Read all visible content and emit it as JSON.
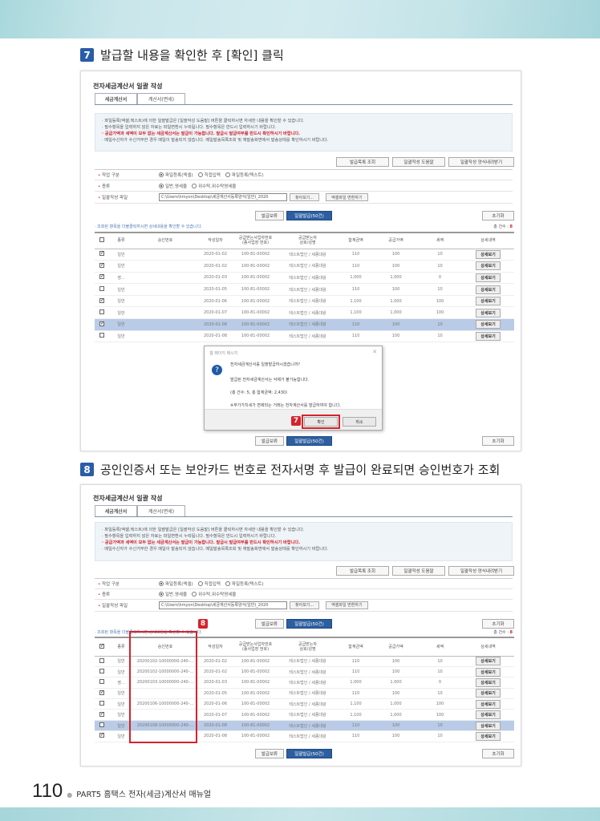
{
  "steps": [
    {
      "number": "7",
      "text": "발급할 내용을 확인한 후 [확인] 클릭"
    },
    {
      "number": "8",
      "text": "공인인증서 또는 보안카드 번호로 전자서명 후 발급이 완료되면 승인번호가 조회"
    }
  ],
  "common": {
    "title": "전자세금계산서 일괄 작성",
    "tabs": [
      "세금계산서",
      "계산서(면세)"
    ],
    "info": [
      "· 파일등록(엑셀,텍스트)에 의한 일괄발급은 [일괄작성 도움말] 버튼을 클릭하시면 자세한 내용을 확인할 수 있습니다.",
      "· 필수항목을 입력하지 않은 자료는 파일변환시 누락됩니다. 필수항목은 반드시 입력하시기 바랍니다.",
      "· 공급가액과 세액이 모두 없는 세금계산서는 발급이 가능합니다. 발급시 발급여부를 반드시 확인하시기 바랍니다.",
      "· 메일수신자가 수신거부한 경우 메일이 발송되지 않습니다. 메일발송목록조회 및 재발송화면에서 발송상태를 확인하시기 바랍니다."
    ],
    "top_buttons": [
      "발급목록 조회",
      "일괄작성 도움말",
      "일괄작성 양식내려받기"
    ],
    "form": {
      "work_type_label": "작업 구분",
      "work_types": [
        "파일등록(엑셀)",
        "직접입력",
        "파일등록(텍스트)"
      ],
      "kind_label": "종류",
      "kinds": [
        "일반,영세율",
        "위수탁,위수탁영세율"
      ],
      "file_label": "일괄작성 파일",
      "file_value": "C:\\Users\\hmyon\\Desktop\\세금계산서등록양식(일반)_2020",
      "browse": "찾아보기...",
      "convert": "엑셀파일 변환하기"
    },
    "hold": "발급보류",
    "issue": "일괄발급(50건)",
    "reset": "초기화",
    "note": "· 조회된 항목을 더블클릭하시면 상세내용을 확인할 수 있습니다.",
    "total_label": "총 건수 : ",
    "total_count": "8",
    "headers": [
      "종류",
      "승인번호",
      "작성일자",
      "공급받는사업자번호\n(종사업장 번호)",
      "공급받는자\n상호/성명",
      "합계금액",
      "공급가액",
      "세액",
      "상세내역"
    ],
    "detail": "상세보기"
  },
  "screens": [
    {
      "header_checked": false,
      "rows": [
        {
          "checked": true,
          "type": "일반",
          "approval": "",
          "date": "2020-01-02",
          "reg": "100-81-00002",
          "name": "테스트법인 / 세종대왕",
          "total": "110",
          "supply": "100",
          "tax": "10"
        },
        {
          "checked": true,
          "type": "일반",
          "approval": "",
          "date": "2020-01-02",
          "reg": "100-81-00002",
          "name": "테스트법인 / 세종대왕",
          "total": "110",
          "supply": "100",
          "tax": "10"
        },
        {
          "checked": true,
          "type": "영...",
          "approval": "",
          "date": "2020-01-03",
          "reg": "100-81-00002",
          "name": "테스트법인 / 세종대왕",
          "total": "1,000",
          "supply": "1,000",
          "tax": "0"
        },
        {
          "checked": false,
          "type": "일반",
          "approval": "",
          "date": "2020-01-05",
          "reg": "100-81-00002",
          "name": "테스트법인 / 세종대왕",
          "total": "110",
          "supply": "100",
          "tax": "10"
        },
        {
          "checked": true,
          "type": "일반",
          "approval": "",
          "date": "2020-01-06",
          "reg": "100-81-00002",
          "name": "테스트법인 / 세종대왕",
          "total": "1,100",
          "supply": "1,000",
          "tax": "100"
        },
        {
          "checked": false,
          "type": "일반",
          "approval": "",
          "date": "2020-01-07",
          "reg": "100-81-00002",
          "name": "테스트법인 / 세종대왕",
          "total": "1,100",
          "supply": "1,000",
          "tax": "100"
        },
        {
          "checked": true,
          "type": "일반",
          "approval": "",
          "date": "2020-01-08",
          "reg": "100-81-00002",
          "name": "테스트법인 / 세종대왕",
          "total": "110",
          "supply": "100",
          "tax": "10",
          "highlight": true
        },
        {
          "checked": false,
          "type": "일반",
          "approval": "",
          "date": "2020-01-08",
          "reg": "100-81-00002",
          "name": "테스트법인 / 세종대왕",
          "total": "110",
          "supply": "100",
          "tax": "10"
        }
      ]
    },
    {
      "header_checked": true,
      "rows": [
        {
          "checked": false,
          "type": "일반",
          "approval": "20200102-10000000-240-...",
          "date": "2020-01-02",
          "reg": "100-81-00002",
          "name": "테스트법인 / 세종대왕",
          "total": "110",
          "supply": "100",
          "tax": "10"
        },
        {
          "checked": false,
          "type": "일반",
          "approval": "20200102-10000000-240-...",
          "date": "2020-01-02",
          "reg": "100-81-00002",
          "name": "테스트법인 / 세종대왕",
          "total": "110",
          "supply": "100",
          "tax": "10"
        },
        {
          "checked": false,
          "type": "영...",
          "approval": "20200103-10000000-240-...",
          "date": "2020-01-03",
          "reg": "100-81-00002",
          "name": "테스트법인 / 세종대왕",
          "total": "1,000",
          "supply": "1,000",
          "tax": "0"
        },
        {
          "checked": true,
          "type": "일반",
          "approval": "",
          "date": "2020-01-05",
          "reg": "100-81-00002",
          "name": "테스트법인 / 세종대왕",
          "total": "110",
          "supply": "100",
          "tax": "10"
        },
        {
          "checked": false,
          "type": "일반",
          "approval": "20200106-10000000-240-...",
          "date": "2020-01-06",
          "reg": "100-81-00002",
          "name": "테스트법인 / 세종대왕",
          "total": "1,100",
          "supply": "1,000",
          "tax": "100"
        },
        {
          "checked": true,
          "type": "일반",
          "approval": "",
          "date": "2020-01-07",
          "reg": "100-81-00002",
          "name": "테스트법인 / 세종대왕",
          "total": "1,100",
          "supply": "1,000",
          "tax": "100"
        },
        {
          "checked": false,
          "type": "일반",
          "approval": "20200108-10000000-240-...",
          "date": "2020-01-08",
          "reg": "100-81-00002",
          "name": "테스트법인 / 세종대왕",
          "total": "110",
          "supply": "100",
          "tax": "10",
          "highlight": true
        },
        {
          "checked": true,
          "type": "일반",
          "approval": "",
          "date": "2020-01-08",
          "reg": "100-81-00002",
          "name": "테스트법인 / 세종대왕",
          "total": "110",
          "supply": "100",
          "tax": "10"
        }
      ]
    }
  ],
  "dialog": {
    "title": "웹 페이지 메시지",
    "lines": [
      "전자세금계산서를 일괄발급하시겠습니까?",
      "발급된 전자세금계산서는 삭제가 불가능합니다.",
      "(총 건수: 5, 총 합계금액: 2,430)",
      "※부가가치세가 면제되는 거래는 전자계산서를 발급하여야 합니다."
    ],
    "ok": "확인",
    "cancel": "취소"
  },
  "footer": {
    "page": "110",
    "text": "PART5 홈택스 전자(세금)계산서 매뉴얼"
  },
  "colors": {
    "accent": "#2d5fa0",
    "highlight": "#b9cbe6",
    "callout": "#d4232b"
  }
}
